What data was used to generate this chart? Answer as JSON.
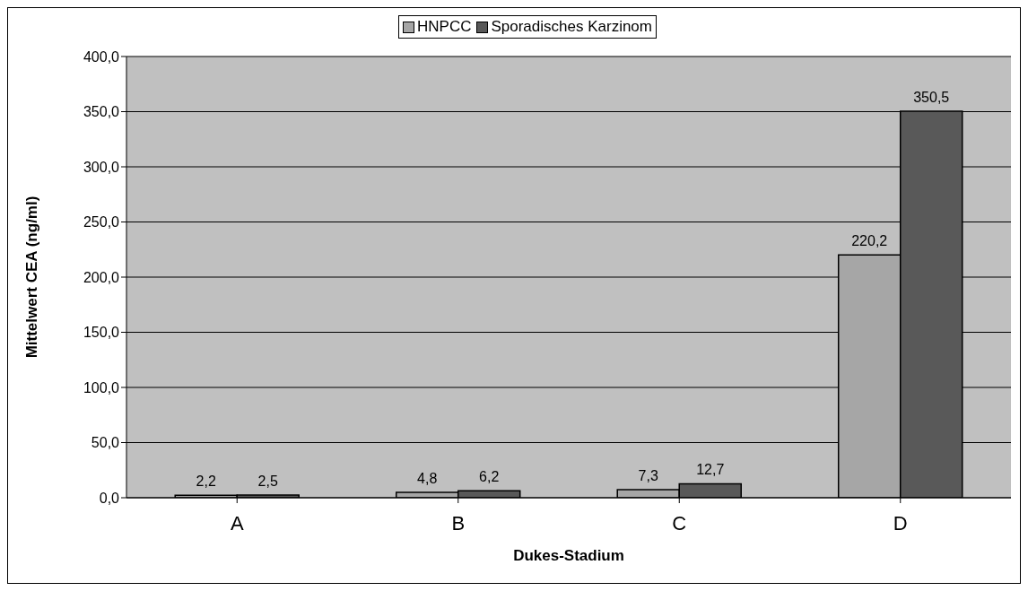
{
  "chart_data": {
    "type": "bar",
    "xlabel": "Dukes-Stadium",
    "ylabel": "Mittelwert CEA (ng/ml)",
    "categories": [
      "A",
      "B",
      "C",
      "D"
    ],
    "series": [
      {
        "name": "HNPCC",
        "color": "#a6a6a6",
        "values": [
          2.2,
          4.8,
          7.3,
          220.2
        ],
        "value_labels": [
          "2,2",
          "4,8",
          "7,3",
          "220,2"
        ]
      },
      {
        "name": "Sporadisches Karzinom",
        "color": "#595959",
        "values": [
          2.5,
          6.2,
          12.7,
          350.5
        ],
        "value_labels": [
          "2,5",
          "6,2",
          "12,7",
          "350,5"
        ]
      }
    ],
    "ylim": [
      0,
      400
    ],
    "yticks": [
      {
        "value": 0,
        "label": "0,0"
      },
      {
        "value": 50,
        "label": "50,0"
      },
      {
        "value": 100,
        "label": "100,0"
      },
      {
        "value": 150,
        "label": "150,0"
      },
      {
        "value": 200,
        "label": "200,0"
      },
      {
        "value": 250,
        "label": "250,0"
      },
      {
        "value": 300,
        "label": "300,0"
      },
      {
        "value": 350,
        "label": "350,0"
      },
      {
        "value": 400,
        "label": "400,0"
      }
    ],
    "grid": "y",
    "legend": "top"
  }
}
